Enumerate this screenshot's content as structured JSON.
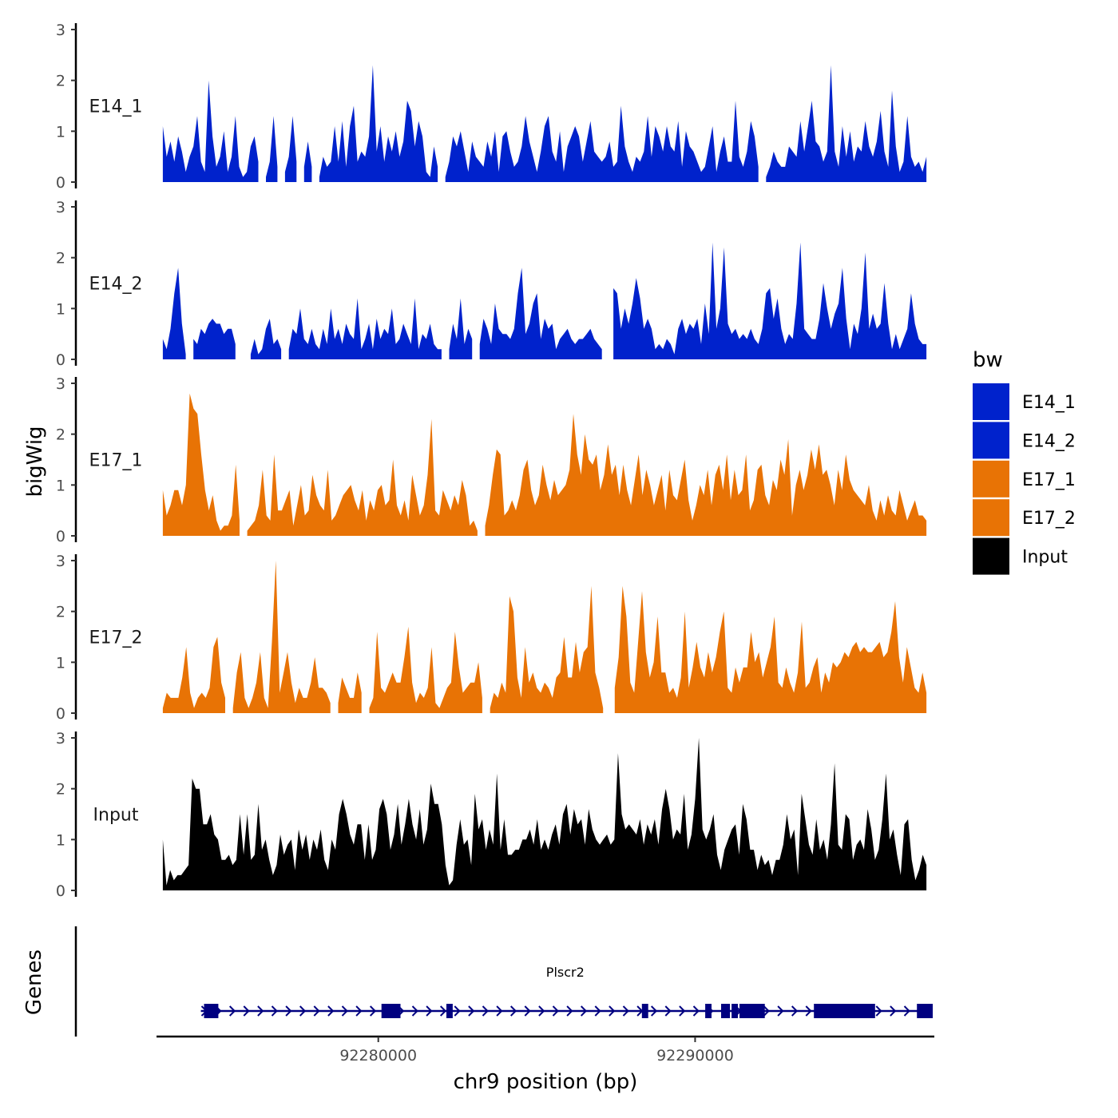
{
  "chart_data": {
    "type": "area",
    "ylabel": "bigWig",
    "xlabel": "chr9 position (bp)",
    "xlim": [
      92273000,
      92297500
    ],
    "x_ticks": [
      92280000,
      92290000
    ],
    "x_tick_labels": [
      "92280000",
      "92290000"
    ],
    "ylim": [
      0,
      3
    ],
    "y_ticks": [
      0,
      1,
      2,
      3
    ],
    "y_tick_labels": [
      "0",
      "1",
      "2",
      "3"
    ],
    "data_range": [
      92273200,
      92297300
    ],
    "legend": {
      "title": "bw",
      "position": "right",
      "entries": [
        {
          "label": "E14_1",
          "color": "#0022CC"
        },
        {
          "label": "E14_2",
          "color": "#0022CC"
        },
        {
          "label": "E17_1",
          "color": "#E87305"
        },
        {
          "label": "E17_2",
          "color": "#E87305"
        },
        {
          "label": "Input",
          "color": "#000000"
        }
      ]
    },
    "series": [
      {
        "name": "E14_1",
        "color": "#0022CC",
        "values": [
          1.1,
          0.5,
          0.8,
          0.4,
          0.9,
          0.6,
          0.2,
          0.5,
          0.7,
          1.3,
          0.4,
          0.2,
          2.0,
          0.9,
          0.3,
          0.5,
          1.0,
          0.2,
          0.5,
          1.3,
          0.3,
          0.1,
          0.2,
          0.7,
          0.9,
          0.4,
          null,
          0.1,
          0.4,
          1.3,
          0.3,
          null,
          0.2,
          0.5,
          1.3,
          0.4,
          null,
          0.3,
          0.8,
          0.3,
          null,
          0.1,
          0.5,
          0.3,
          0.4,
          1.1,
          0.4,
          1.2,
          0.3,
          1.1,
          1.5,
          0.4,
          0.6,
          0.5,
          0.9,
          2.3,
          0.6,
          1.1,
          0.4,
          0.9,
          0.6,
          1.0,
          0.5,
          0.8,
          1.6,
          1.4,
          0.7,
          1.2,
          0.9,
          0.2,
          0.1,
          0.7,
          0.3,
          null,
          0.1,
          0.4,
          0.9,
          0.7,
          1.0,
          0.6,
          0.2,
          0.8,
          0.5,
          0.4,
          0.3,
          0.8,
          0.5,
          1.0,
          0.2,
          0.9,
          1.0,
          0.6,
          0.3,
          0.4,
          0.7,
          1.3,
          0.8,
          0.5,
          0.2,
          0.6,
          1.1,
          1.3,
          0.6,
          0.4,
          1.0,
          0.2,
          0.7,
          0.9,
          1.1,
          0.9,
          0.4,
          0.8,
          1.2,
          0.6,
          0.5,
          0.4,
          0.5,
          0.8,
          0.3,
          0.4,
          1.5,
          0.7,
          0.4,
          0.2,
          0.5,
          0.4,
          0.6,
          1.3,
          0.5,
          1.1,
          0.9,
          0.6,
          1.1,
          0.7,
          0.6,
          1.2,
          0.3,
          1.0,
          0.7,
          0.6,
          0.4,
          0.2,
          0.3,
          0.7,
          1.1,
          0.2,
          0.6,
          0.9,
          0.4,
          0.4,
          1.6,
          0.5,
          0.3,
          0.6,
          1.2,
          0.9,
          0.3,
          null,
          0.1,
          0.3,
          0.6,
          0.4,
          0.3,
          0.3,
          0.7,
          0.6,
          0.5,
          1.2,
          0.6,
          1.1,
          1.6,
          0.8,
          0.7,
          0.4,
          0.6,
          2.3,
          0.6,
          0.3,
          1.1,
          0.5,
          1.0,
          0.4,
          0.7,
          0.6,
          1.2,
          0.7,
          0.5,
          0.8,
          1.4,
          0.6,
          0.3,
          1.8,
          0.7,
          0.2,
          0.4,
          1.3,
          0.5,
          0.3,
          0.4,
          0.2,
          0.5
        ]
      },
      {
        "name": "E14_2",
        "color": "#0022CC",
        "values": [
          0.4,
          0.2,
          0.6,
          1.3,
          1.8,
          0.7,
          0.1,
          null,
          0.4,
          0.3,
          0.6,
          0.5,
          0.7,
          0.8,
          0.7,
          0.7,
          0.5,
          0.6,
          0.6,
          0.3,
          null,
          null,
          null,
          0.1,
          0.4,
          0.1,
          0.2,
          0.6,
          0.8,
          0.3,
          0.4,
          0.2,
          null,
          0.2,
          0.6,
          0.5,
          1.0,
          0.4,
          0.3,
          0.6,
          0.3,
          0.2,
          0.6,
          0.3,
          1.0,
          0.4,
          0.6,
          0.3,
          0.7,
          0.5,
          0.4,
          1.2,
          0.2,
          0.4,
          0.7,
          0.2,
          0.8,
          0.4,
          0.6,
          0.5,
          1.0,
          0.3,
          0.4,
          0.7,
          0.5,
          0.3,
          1.2,
          0.2,
          0.5,
          0.4,
          0.7,
          0.3,
          0.2,
          0.2,
          null,
          0.2,
          0.7,
          0.4,
          1.2,
          0.3,
          0.6,
          0.4,
          null,
          0.3,
          0.8,
          0.6,
          0.3,
          1.1,
          0.6,
          0.5,
          0.5,
          0.4,
          0.6,
          1.3,
          1.8,
          0.5,
          0.7,
          1.1,
          1.3,
          0.4,
          0.8,
          0.6,
          0.7,
          0.2,
          0.4,
          0.5,
          0.6,
          0.4,
          0.3,
          0.4,
          0.4,
          0.5,
          0.6,
          0.4,
          0.3,
          0.2,
          null,
          null,
          1.4,
          1.3,
          0.6,
          1.0,
          0.7,
          1.1,
          1.6,
          1.2,
          0.6,
          0.8,
          0.6,
          0.2,
          0.3,
          0.2,
          0.4,
          0.3,
          0.1,
          0.6,
          0.8,
          0.5,
          0.7,
          0.6,
          0.8,
          0.3,
          1.1,
          0.5,
          2.3,
          0.6,
          1.0,
          2.2,
          0.7,
          0.5,
          0.6,
          0.4,
          0.5,
          0.4,
          0.6,
          0.4,
          0.3,
          0.6,
          1.3,
          1.4,
          0.8,
          1.2,
          0.6,
          0.3,
          0.5,
          0.4,
          1.1,
          2.3,
          0.6,
          0.5,
          0.4,
          0.4,
          0.8,
          1.5,
          1.0,
          0.6,
          0.9,
          1.1,
          1.8,
          0.8,
          0.2,
          0.7,
          0.5,
          1.0,
          2.1,
          0.6,
          0.9,
          0.6,
          0.7,
          1.5,
          0.7,
          0.2,
          0.5,
          0.2,
          0.4,
          0.6,
          1.3,
          0.7,
          0.4,
          0.3,
          0.3
        ]
      },
      {
        "name": "E17_1",
        "color": "#E87305",
        "values": [
          0.9,
          0.4,
          0.6,
          0.9,
          0.9,
          0.6,
          1.0,
          2.8,
          2.5,
          2.4,
          1.6,
          0.9,
          0.5,
          0.8,
          0.3,
          0.1,
          0.2,
          0.2,
          0.4,
          1.4,
          0.3,
          null,
          0.1,
          0.2,
          0.3,
          0.6,
          1.3,
          0.4,
          0.3,
          1.6,
          0.5,
          0.5,
          0.7,
          0.9,
          0.2,
          0.6,
          1.0,
          0.4,
          0.5,
          1.2,
          0.8,
          0.6,
          0.5,
          1.3,
          0.3,
          0.4,
          0.6,
          0.8,
          0.9,
          1.0,
          0.7,
          0.5,
          0.9,
          0.3,
          0.7,
          0.5,
          0.9,
          1.0,
          0.6,
          0.7,
          1.5,
          0.6,
          0.4,
          0.7,
          0.3,
          1.2,
          0.8,
          0.4,
          0.6,
          1.2,
          2.3,
          0.5,
          0.4,
          0.9,
          0.7,
          0.5,
          0.8,
          0.6,
          1.1,
          0.8,
          0.2,
          0.3,
          0.1,
          null,
          0.2,
          0.6,
          1.2,
          1.7,
          1.6,
          0.4,
          0.5,
          0.7,
          0.5,
          0.8,
          1.3,
          1.5,
          0.9,
          0.6,
          0.8,
          1.4,
          1.0,
          0.7,
          1.1,
          0.8,
          0.9,
          1.0,
          1.3,
          2.4,
          1.6,
          1.2,
          2.0,
          1.5,
          1.4,
          1.6,
          0.9,
          1.2,
          1.8,
          1.2,
          1.4,
          0.8,
          1.4,
          0.9,
          0.6,
          1.1,
          1.6,
          0.8,
          1.3,
          1.0,
          0.6,
          0.9,
          1.2,
          0.5,
          1.3,
          0.8,
          0.7,
          1.1,
          1.5,
          0.7,
          0.3,
          0.6,
          1.0,
          0.8,
          1.3,
          0.6,
          1.2,
          1.4,
          0.9,
          1.6,
          0.7,
          1.3,
          0.8,
          0.9,
          1.6,
          0.5,
          0.7,
          1.3,
          1.4,
          0.8,
          0.6,
          1.1,
          0.9,
          1.5,
          1.2,
          1.9,
          0.4,
          1.0,
          1.3,
          0.9,
          1.2,
          1.7,
          1.3,
          1.8,
          1.2,
          1.3,
          1.0,
          0.6,
          1.3,
          0.9,
          1.6,
          1.1,
          0.9,
          0.8,
          0.7,
          0.6,
          1.0,
          0.5,
          0.3,
          0.7,
          0.4,
          0.8,
          0.5,
          0.4,
          0.9,
          0.6,
          0.3,
          0.5,
          0.7,
          0.4,
          0.4,
          0.3
        ]
      },
      {
        "name": "E17_2",
        "color": "#E87305",
        "values": [
          0.1,
          0.4,
          0.3,
          0.3,
          0.3,
          0.7,
          1.3,
          0.4,
          0.1,
          0.3,
          0.4,
          0.3,
          0.5,
          1.3,
          1.5,
          0.6,
          0.3,
          null,
          0.1,
          0.8,
          1.2,
          0.3,
          0.1,
          0.3,
          0.6,
          1.2,
          0.3,
          0.1,
          1.4,
          3.0,
          0.4,
          0.8,
          1.2,
          0.6,
          0.2,
          0.5,
          0.3,
          0.3,
          0.6,
          1.1,
          0.5,
          0.5,
          0.4,
          0.2,
          null,
          0.2,
          0.7,
          0.5,
          0.3,
          0.3,
          0.8,
          0.4,
          null,
          0.1,
          0.3,
          1.6,
          0.5,
          0.4,
          0.6,
          0.8,
          0.6,
          0.6,
          1.1,
          1.7,
          0.6,
          0.2,
          0.4,
          0.3,
          0.5,
          1.3,
          0.2,
          0.1,
          0.3,
          0.5,
          0.6,
          1.6,
          0.9,
          0.4,
          0.5,
          0.6,
          0.6,
          1.0,
          0.3,
          null,
          0.1,
          0.4,
          0.3,
          0.6,
          0.4,
          2.3,
          2.0,
          0.7,
          0.3,
          1.3,
          0.6,
          0.8,
          0.5,
          0.4,
          0.6,
          0.5,
          0.3,
          0.7,
          0.8,
          1.5,
          0.7,
          0.7,
          1.4,
          0.8,
          1.2,
          1.3,
          2.5,
          0.8,
          0.5,
          0.1,
          null,
          null,
          0.5,
          1.1,
          2.5,
          1.9,
          0.6,
          0.4,
          1.4,
          2.4,
          1.2,
          0.7,
          1.0,
          1.9,
          0.8,
          0.8,
          0.4,
          0.5,
          0.3,
          0.7,
          2.0,
          0.5,
          0.9,
          1.4,
          0.9,
          0.7,
          1.2,
          0.8,
          1.1,
          1.6,
          2.0,
          0.5,
          0.4,
          0.9,
          0.6,
          0.9,
          0.9,
          1.6,
          1.0,
          1.2,
          0.7,
          1.0,
          1.3,
          1.9,
          0.6,
          0.5,
          0.9,
          0.6,
          0.4,
          0.8,
          1.8,
          0.5,
          0.6,
          0.9,
          1.1,
          0.4,
          0.8,
          0.6,
          1.0,
          0.9,
          1.0,
          1.2,
          1.1,
          1.3,
          1.4,
          1.2,
          1.3,
          1.2,
          1.2,
          1.3,
          1.4,
          1.1,
          1.2,
          1.6,
          2.2,
          1.1,
          0.6,
          1.3,
          0.9,
          0.5,
          0.4,
          0.8,
          0.4
        ]
      },
      {
        "name": "Input",
        "color": "#000000",
        "values": [
          1.0,
          0.1,
          0.4,
          0.2,
          0.3,
          0.3,
          0.4,
          0.5,
          2.2,
          2.0,
          2.0,
          1.3,
          1.3,
          1.5,
          1.1,
          1.0,
          0.6,
          0.6,
          0.7,
          0.5,
          0.6,
          1.5,
          0.7,
          1.5,
          0.6,
          0.7,
          1.7,
          0.8,
          1.0,
          0.6,
          0.3,
          0.5,
          1.1,
          0.7,
          0.9,
          1.0,
          0.4,
          1.2,
          0.8,
          1.1,
          0.6,
          1.0,
          0.8,
          1.2,
          0.6,
          0.4,
          1.0,
          0.8,
          1.5,
          1.8,
          1.5,
          1.1,
          0.9,
          1.3,
          1.3,
          0.6,
          1.3,
          0.6,
          0.8,
          1.6,
          1.8,
          1.5,
          0.8,
          1.1,
          1.7,
          0.9,
          1.3,
          1.8,
          1.3,
          1.0,
          1.6,
          0.9,
          1.2,
          2.1,
          1.7,
          1.7,
          1.3,
          0.5,
          0.1,
          0.2,
          0.9,
          1.4,
          0.9,
          1.0,
          0.5,
          1.9,
          1.2,
          1.4,
          0.8,
          1.2,
          0.9,
          2.3,
          0.8,
          1.4,
          0.7,
          0.7,
          0.8,
          0.8,
          1.0,
          1.0,
          1.2,
          0.9,
          1.4,
          0.8,
          1.0,
          0.8,
          1.1,
          1.3,
          0.9,
          1.5,
          1.7,
          1.1,
          1.6,
          1.3,
          1.4,
          0.9,
          1.6,
          1.2,
          1.0,
          0.9,
          1.0,
          1.1,
          0.9,
          1.0,
          2.7,
          1.5,
          1.2,
          1.3,
          1.2,
          1.1,
          1.4,
          0.9,
          1.3,
          1.1,
          1.4,
          0.9,
          1.6,
          2.0,
          1.6,
          1.0,
          1.2,
          1.1,
          1.9,
          0.8,
          1.1,
          1.8,
          3.0,
          1.2,
          1.0,
          1.2,
          1.5,
          0.7,
          0.4,
          0.8,
          1.0,
          1.2,
          1.3,
          0.7,
          1.7,
          1.4,
          0.8,
          0.8,
          0.4,
          0.7,
          0.5,
          0.6,
          0.3,
          0.6,
          0.6,
          0.9,
          1.5,
          1.0,
          1.2,
          0.3,
          1.9,
          1.4,
          0.9,
          0.7,
          1.4,
          0.8,
          1.0,
          0.6,
          1.3,
          2.5,
          0.9,
          0.8,
          1.5,
          1.4,
          0.6,
          0.9,
          1.0,
          0.8,
          1.6,
          1.2,
          0.6,
          0.8,
          1.4,
          2.3,
          1.0,
          1.2,
          0.7,
          0.3,
          1.3,
          1.4,
          0.6,
          0.2,
          0.4,
          0.7,
          0.5
        ]
      }
    ],
    "genes_track": {
      "label": "Genes",
      "gene_name": "Plscr2",
      "color": "#000080",
      "strand": "+",
      "span": [
        92274400,
        92297400
      ],
      "exons": [
        [
          92274500,
          92274950
        ],
        [
          92280100,
          92280700
        ],
        [
          92282150,
          92282350
        ],
        [
          92288320,
          92288520
        ],
        [
          92290320,
          92290520
        ],
        [
          92290820,
          92291100
        ],
        [
          92291150,
          92291350
        ],
        [
          92291400,
          92292200
        ],
        [
          92293750,
          92295550
        ],
        [
          92295480,
          92295680
        ],
        [
          92297000,
          92297500
        ]
      ]
    }
  }
}
